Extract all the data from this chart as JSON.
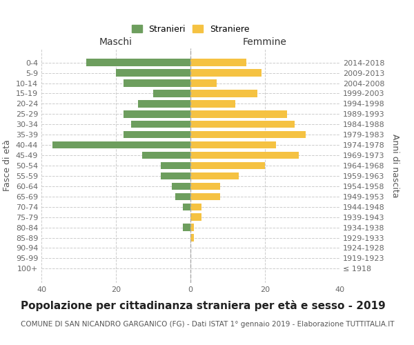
{
  "age_groups": [
    "100+",
    "95-99",
    "90-94",
    "85-89",
    "80-84",
    "75-79",
    "70-74",
    "65-69",
    "60-64",
    "55-59",
    "50-54",
    "45-49",
    "40-44",
    "35-39",
    "30-34",
    "25-29",
    "20-24",
    "15-19",
    "10-14",
    "5-9",
    "0-4"
  ],
  "birth_years": [
    "≤ 1918",
    "1919-1923",
    "1924-1928",
    "1929-1933",
    "1934-1938",
    "1939-1943",
    "1944-1948",
    "1949-1953",
    "1954-1958",
    "1959-1963",
    "1964-1968",
    "1969-1973",
    "1974-1978",
    "1979-1983",
    "1984-1988",
    "1989-1993",
    "1994-1998",
    "1999-2003",
    "2004-2008",
    "2009-2013",
    "2014-2018"
  ],
  "maschi": [
    0,
    0,
    0,
    0,
    2,
    0,
    2,
    4,
    5,
    8,
    8,
    13,
    37,
    18,
    16,
    18,
    14,
    10,
    18,
    20,
    28
  ],
  "femmine": [
    0,
    0,
    0,
    1,
    1,
    3,
    3,
    8,
    8,
    13,
    20,
    29,
    23,
    31,
    28,
    26,
    12,
    18,
    7,
    19,
    15
  ],
  "color_maschi": "#6d9e5e",
  "color_femmine": "#f5c242",
  "xlim": 40,
  "title": "Popolazione per cittadinanza straniera per età e sesso - 2019",
  "subtitle": "COMUNE DI SAN NICANDRO GARGANICO (FG) - Dati ISTAT 1° gennaio 2019 - Elaborazione TUTTITALIA.IT",
  "ylabel_left": "Fasce di età",
  "ylabel_right": "Anni di nascita",
  "legend_maschi": "Stranieri",
  "legend_femmine": "Straniere",
  "header_maschi": "Maschi",
  "header_femmine": "Femmine",
  "background_color": "#ffffff",
  "grid_color": "#cccccc",
  "title_fontsize": 11,
  "subtitle_fontsize": 7.5,
  "tick_fontsize": 8,
  "axis_label_fontsize": 9
}
